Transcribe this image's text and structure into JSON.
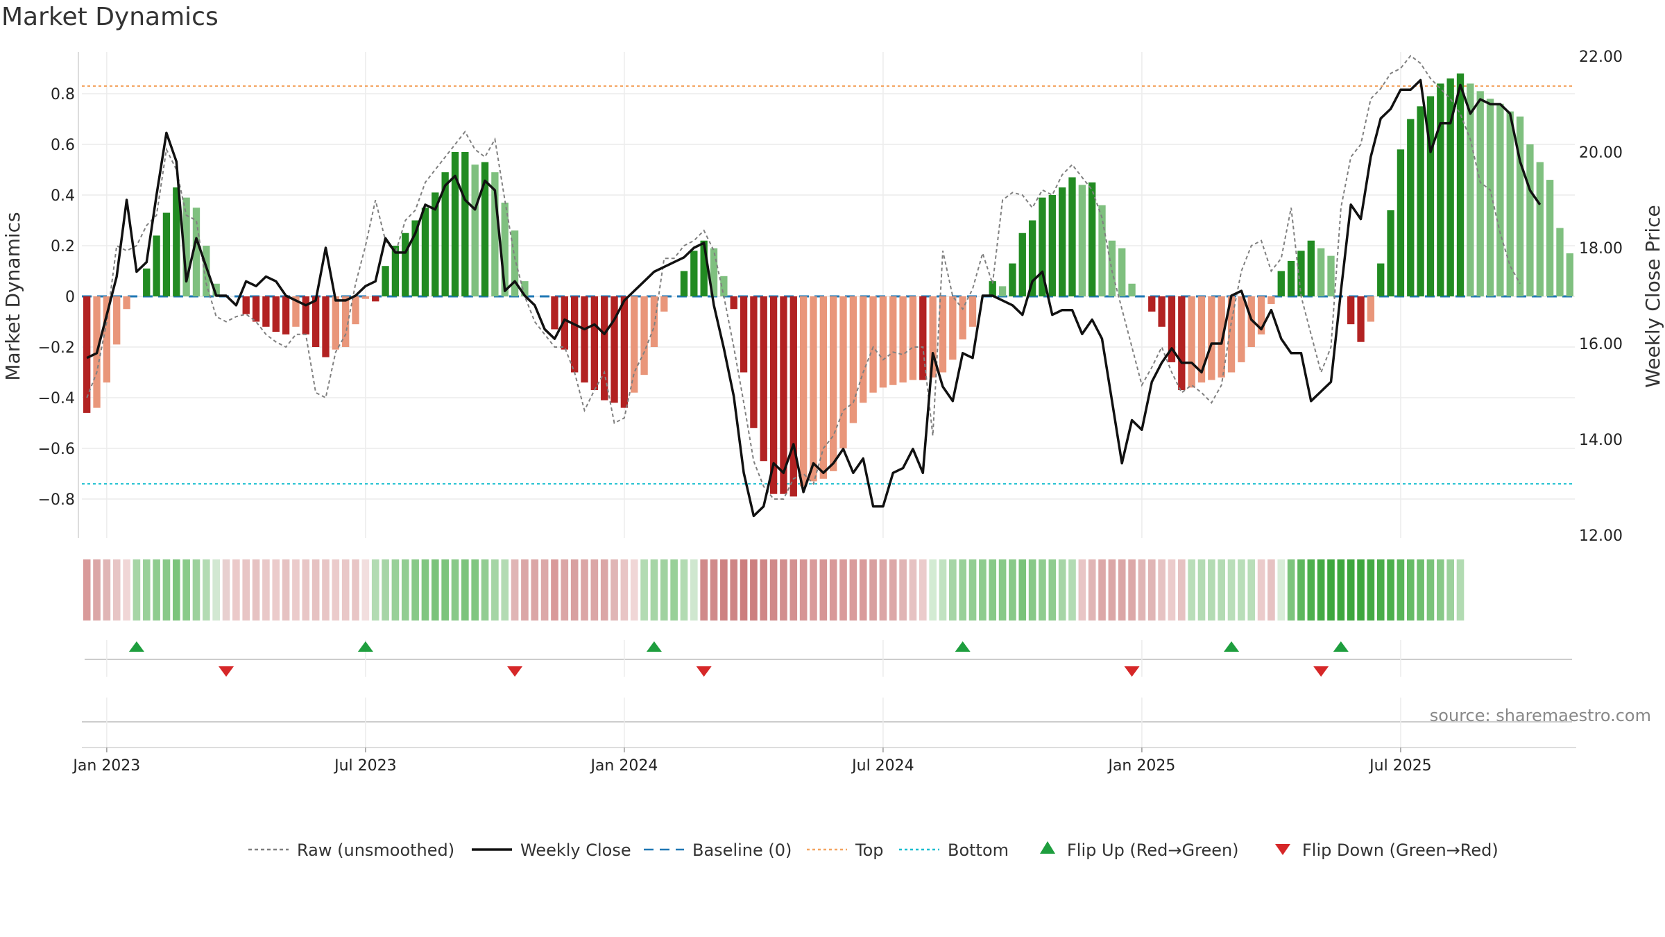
{
  "chart_data": {
    "type": "bar",
    "title": "Market Dynamics",
    "ylabel_left": "Market Dynamics",
    "ylabel_right": "Weekly Close Price",
    "source": "source: sharemaestro.com",
    "ylim_left": [
      -0.95,
      0.97
    ],
    "ylim_right": [
      12.0,
      22.0
    ],
    "left_ticks": [
      {
        "v": 0.8,
        "label": "0.8"
      },
      {
        "v": 0.6,
        "label": "0.6"
      },
      {
        "v": 0.4,
        "label": "0.4"
      },
      {
        "v": 0.2,
        "label": "0.2"
      },
      {
        "v": 0.0,
        "label": "0"
      },
      {
        "v": -0.2,
        "label": "−0.2"
      },
      {
        "v": -0.4,
        "label": "−0.4"
      },
      {
        "v": -0.6,
        "label": "−0.6"
      },
      {
        "v": -0.8,
        "label": "−0.8"
      }
    ],
    "right_ticks": [
      {
        "v": 22,
        "label": "22.00"
      },
      {
        "v": 20,
        "label": "20.00"
      },
      {
        "v": 18,
        "label": "18.00"
      },
      {
        "v": 16,
        "label": "16.00"
      },
      {
        "v": 14,
        "label": "14.00"
      },
      {
        "v": 12,
        "label": "12.00"
      }
    ],
    "x_ticks": [
      {
        "week": 2,
        "label": "Jan 2023"
      },
      {
        "week": 28,
        "label": "Jul 2023"
      },
      {
        "week": 54,
        "label": "Jan 2024"
      },
      {
        "week": 80,
        "label": "Jul 2024"
      },
      {
        "week": 106,
        "label": "Jan 2025"
      },
      {
        "week": 132,
        "label": "Jul 2025"
      }
    ],
    "top_threshold": 0.83,
    "bottom_threshold": -0.74,
    "dynamics": [
      -0.46,
      -0.44,
      -0.34,
      -0.19,
      -0.05,
      0.0,
      0.11,
      0.24,
      0.33,
      0.43,
      0.39,
      0.35,
      0.2,
      0.05,
      0.0,
      0.0,
      -0.07,
      -0.1,
      -0.12,
      -0.14,
      -0.15,
      -0.12,
      -0.15,
      -0.2,
      -0.24,
      -0.21,
      -0.2,
      -0.11,
      -0.01,
      -0.02,
      0.12,
      0.2,
      0.25,
      0.3,
      0.35,
      0.41,
      0.49,
      0.57,
      0.57,
      0.52,
      0.53,
      0.49,
      0.37,
      0.26,
      0.06,
      0.0,
      0.0,
      -0.13,
      -0.21,
      -0.3,
      -0.34,
      -0.37,
      -0.41,
      -0.42,
      -0.44,
      -0.38,
      -0.31,
      -0.2,
      -0.06,
      0.0,
      0.1,
      0.18,
      0.22,
      0.19,
      0.08,
      -0.05,
      -0.3,
      -0.52,
      -0.65,
      -0.78,
      -0.78,
      -0.79,
      -0.75,
      -0.73,
      -0.72,
      -0.69,
      -0.6,
      -0.5,
      -0.42,
      -0.38,
      -0.36,
      -0.35,
      -0.34,
      -0.33,
      -0.33,
      -0.32,
      -0.3,
      -0.25,
      -0.17,
      -0.12,
      0.0,
      0.06,
      0.04,
      0.13,
      0.25,
      0.3,
      0.39,
      0.4,
      0.43,
      0.47,
      0.44,
      0.45,
      0.36,
      0.22,
      0.19,
      0.05,
      0.0,
      -0.06,
      -0.12,
      -0.26,
      -0.37,
      -0.36,
      -0.34,
      -0.33,
      -0.32,
      -0.3,
      -0.26,
      -0.2,
      -0.15,
      -0.03,
      0.1,
      0.14,
      0.18,
      0.22,
      0.19,
      0.16,
      0.0,
      -0.11,
      -0.18,
      -0.1,
      0.13,
      0.34,
      0.58,
      0.7,
      0.75,
      0.79,
      0.84,
      0.86,
      0.88,
      0.84,
      0.81,
      0.78,
      0.76,
      0.73,
      0.71,
      0.6,
      0.53,
      0.46,
      0.27,
      0.17
    ],
    "raw": [
      -0.4,
      -0.3,
      -0.1,
      0.2,
      0.18,
      0.2,
      0.28,
      0.32,
      0.58,
      0.5,
      0.32,
      0.3,
      0.05,
      -0.08,
      -0.1,
      -0.08,
      -0.07,
      -0.1,
      -0.15,
      -0.18,
      -0.2,
      -0.15,
      -0.15,
      -0.38,
      -0.4,
      -0.22,
      -0.15,
      0.05,
      0.2,
      0.38,
      0.22,
      0.17,
      0.3,
      0.34,
      0.45,
      0.5,
      0.55,
      0.6,
      0.65,
      0.58,
      0.55,
      0.62,
      0.38,
      0.15,
      0.0,
      -0.1,
      -0.15,
      -0.2,
      -0.2,
      -0.3,
      -0.45,
      -0.37,
      -0.3,
      -0.5,
      -0.48,
      -0.3,
      -0.22,
      -0.12,
      0.15,
      0.15,
      0.2,
      0.22,
      0.26,
      0.18,
      0.0,
      -0.2,
      -0.42,
      -0.65,
      -0.75,
      -0.8,
      -0.8,
      -0.72,
      -0.7,
      -0.74,
      -0.6,
      -0.55,
      -0.45,
      -0.42,
      -0.3,
      -0.2,
      -0.25,
      -0.22,
      -0.23,
      -0.2,
      -0.2,
      -0.55,
      0.18,
      0.0,
      -0.05,
      0.03,
      0.17,
      0.05,
      0.38,
      0.41,
      0.4,
      0.35,
      0.42,
      0.4,
      0.48,
      0.52,
      0.47,
      0.42,
      0.31,
      0.1,
      -0.05,
      -0.2,
      -0.35,
      -0.28,
      -0.2,
      -0.3,
      -0.38,
      -0.35,
      -0.38,
      -0.42,
      -0.35,
      -0.1,
      0.1,
      0.2,
      0.22,
      0.1,
      0.15,
      0.35,
      0.0,
      -0.15,
      -0.3,
      -0.2,
      0.35,
      0.55,
      0.6,
      0.78,
      0.82,
      0.88,
      0.9,
      0.95,
      0.92,
      0.86,
      0.82,
      0.78,
      0.72,
      0.62,
      0.45,
      0.42,
      0.25,
      0.12,
      0.05
    ],
    "weekly_close": [
      15.7,
      15.8,
      16.6,
      17.4,
      19.0,
      17.5,
      17.7,
      19.1,
      20.4,
      19.8,
      17.3,
      18.2,
      17.6,
      17.0,
      17.0,
      16.8,
      17.3,
      17.2,
      17.4,
      17.3,
      17.0,
      16.9,
      16.8,
      16.9,
      18.0,
      16.9,
      16.9,
      17.0,
      17.2,
      17.3,
      18.2,
      17.9,
      17.9,
      18.3,
      18.9,
      18.8,
      19.3,
      19.5,
      19.0,
      18.8,
      19.4,
      19.2,
      17.1,
      17.3,
      17.0,
      16.8,
      16.3,
      16.1,
      16.5,
      16.4,
      16.3,
      16.4,
      16.2,
      16.5,
      16.9,
      17.1,
      17.3,
      17.5,
      17.6,
      17.7,
      17.8,
      18.0,
      18.1,
      16.8,
      15.9,
      14.9,
      13.3,
      12.4,
      12.6,
      13.5,
      13.3,
      13.9,
      12.9,
      13.5,
      13.3,
      13.5,
      13.8,
      13.3,
      13.6,
      12.6,
      12.6,
      13.3,
      13.4,
      13.8,
      13.3,
      15.8,
      15.1,
      14.8,
      15.8,
      15.7,
      17.0,
      17.0,
      16.9,
      16.8,
      16.6,
      17.3,
      17.5,
      16.6,
      16.7,
      16.7,
      16.2,
      16.5,
      16.1,
      14.8,
      13.5,
      14.4,
      14.2,
      15.2,
      15.6,
      15.9,
      15.6,
      15.6,
      15.4,
      16.0,
      16.0,
      17.0,
      17.1,
      16.5,
      16.3,
      16.7,
      16.1,
      15.8,
      15.8,
      14.8,
      15.0,
      15.2,
      17.1,
      18.9,
      18.6,
      19.9,
      20.7,
      20.9,
      21.3,
      21.3,
      21.5,
      20.0,
      20.6,
      20.6,
      21.4,
      20.8,
      21.1,
      21.0,
      21.0,
      20.8,
      19.8,
      19.2,
      18.9
    ],
    "regime_strip": [
      "#d99a9a",
      "#dba6a6",
      "#e0b5b5",
      "#e7c5c5",
      "#f0d6d6",
      "#a6d5a6",
      "#99d099",
      "#8fcc8f",
      "#88c988",
      "#7cc47c",
      "#8acb8a",
      "#9cd19c",
      "#b3dbb3",
      "#d2e8d2",
      "#e8cfcf",
      "#ebc9c9",
      "#e8c5c5",
      "#e6c2c2",
      "#e9c8c8",
      "#ebcbcb",
      "#e6c2c2",
      "#ebcbcb",
      "#e8c6c6",
      "#e6c2c2",
      "#e8c5c5",
      "#ebcbcb",
      "#e9c8c8",
      "#e8c5c5",
      "#f2dede",
      "#b2dbb2",
      "#a6d5a6",
      "#99d099",
      "#92cd92",
      "#88c988",
      "#80c680",
      "#7ac37a",
      "#7cc47c",
      "#88c988",
      "#7cc47c",
      "#80c680",
      "#92cd92",
      "#a6d5a6",
      "#b3dbb3",
      "#e0b5b5",
      "#dba6a6",
      "#dba6a6",
      "#dca8a8",
      "#d99a9a",
      "#dba6a6",
      "#d8a0a0",
      "#dba6a6",
      "#dba6a6",
      "#dba6a6",
      "#e0b5b5",
      "#e8c5c5",
      "#f0d6d6",
      "#b3dbb3",
      "#a6d5a6",
      "#a0d2a0",
      "#99d099",
      "#b2dbb2",
      "#cfe7cf",
      "#d08a8a",
      "#d08a8a",
      "#cd8282",
      "#ce8585",
      "#cc7e7e",
      "#cc7e7e",
      "#cf8787",
      "#d08a8a",
      "#d28e8e",
      "#d39090",
      "#d69595",
      "#d99b9b",
      "#d69696",
      "#d89999",
      "#d99b9b",
      "#d99b9b",
      "#d99b9b",
      "#d8a0a0",
      "#dba6a6",
      "#dca8a8",
      "#e0b5b5",
      "#e6c2c2",
      "#ebcbcb",
      "#d3ebd3",
      "#c1e2c1",
      "#a6d5a6",
      "#99d099",
      "#92cd92",
      "#8fcc8f",
      "#88c988",
      "#88c988",
      "#88c988",
      "#7ac37a",
      "#88c988",
      "#8fcc8f",
      "#8fcc8f",
      "#a6d5a6",
      "#b3dbb3",
      "#e8c5c5",
      "#e0b5b5",
      "#dca8a8",
      "#dba6a6",
      "#dba6a6",
      "#dca8a8",
      "#e0b5b5",
      "#e0b5b5",
      "#e6c2c2",
      "#ebcbcb",
      "#e6c2c2",
      "#b9deb9",
      "#b3dbb3",
      "#b3dbb3",
      "#b3dbb3",
      "#b9deb9",
      "#b9deb9",
      "#b9deb9",
      "#ebcbcb",
      "#e6c2c2",
      "#d8ecd8",
      "#7cc47c",
      "#5eb75e",
      "#4daf4d",
      "#44aa44",
      "#3ea73e",
      "#3ea73e",
      "#3da63d",
      "#3ea73e",
      "#44aa44",
      "#4aad4a",
      "#4daf4d",
      "#59b559",
      "#66bb66",
      "#6ebe6e",
      "#7ac37a",
      "#88c988",
      "#9cd19c",
      "#b2dbb2"
    ],
    "flip_up_weeks": [
      5,
      28,
      57,
      88,
      115,
      126
    ],
    "flip_down_weeks": [
      14,
      43,
      62,
      105,
      124
    ],
    "colors": {
      "bar_strong_green": "#228b22",
      "bar_weak_green": "#7fc07f",
      "bar_strong_red": "#b22222",
      "bar_weak_red": "#e9967a",
      "weekly_close": "#111111",
      "raw": "#808080",
      "baseline": "#1f77b4",
      "top": "#f4a460",
      "bottom": "#17becf",
      "flip_up": "#1e9e3e",
      "flip_down": "#d62728"
    },
    "legend": [
      {
        "type": "line-dash",
        "label": "Raw (unsmoothed)",
        "color": "#808080"
      },
      {
        "type": "line",
        "label": "Weekly Close",
        "color": "#111111"
      },
      {
        "type": "line-longdash",
        "label": "Baseline (0)",
        "color": "#1f77b4"
      },
      {
        "type": "line-dot",
        "label": "Top",
        "color": "#f4a460"
      },
      {
        "type": "line-dot",
        "label": "Bottom",
        "color": "#17becf"
      },
      {
        "type": "tri-up",
        "label": "Flip Up (Red→Green)",
        "color": "#1e9e3e"
      },
      {
        "type": "tri-down",
        "label": "Flip Down (Green→Red)",
        "color": "#d62728"
      }
    ],
    "grid": true,
    "legend_placement": "bottom"
  }
}
